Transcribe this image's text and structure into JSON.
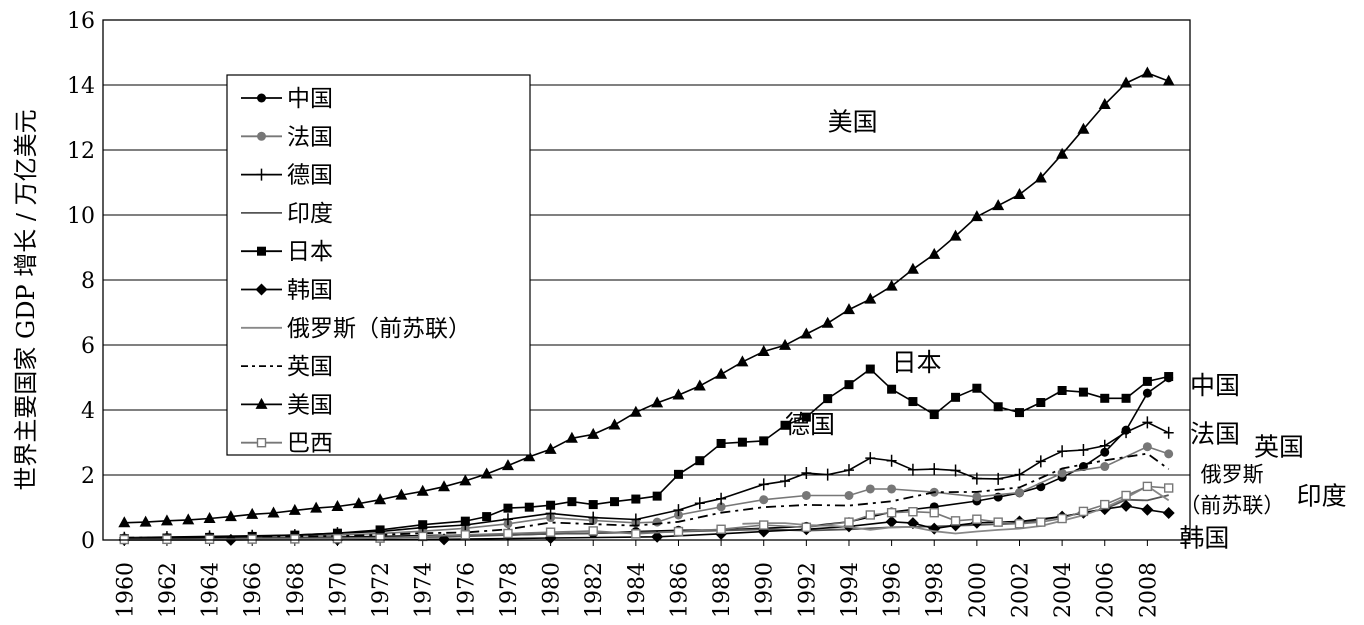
{
  "chart_data": {
    "type": "line",
    "ylabel": "世界主要国家 GDP 增长 / 万亿美元",
    "xlabel": "",
    "ylim": [
      0,
      16
    ],
    "yticks": [
      0,
      2,
      4,
      6,
      8,
      10,
      12,
      14,
      16
    ],
    "xlim": [
      1959,
      2010
    ],
    "xticks": [
      "1960",
      "1962",
      "1964",
      "1966",
      "1968",
      "1970",
      "1972",
      "1974",
      "1976",
      "1978",
      "1980",
      "1982",
      "1984",
      "1986",
      "1988",
      "1990",
      "1992",
      "1994",
      "1996",
      "1998",
      "2000",
      "2002",
      "2004",
      "2006",
      "2008"
    ],
    "grid": "horizontal",
    "legend_position": "top-left",
    "series": [
      {
        "name": "中国",
        "marker": "circle",
        "color": "#000000",
        "x": [
          1960,
          1962,
          1964,
          1966,
          1968,
          1970,
          1972,
          1974,
          1976,
          1978,
          1980,
          1982,
          1984,
          1986,
          1988,
          1990,
          1992,
          1994,
          1996,
          1998,
          2000,
          2001,
          2002,
          2003,
          2004,
          2005,
          2006,
          2007,
          2008,
          2009
        ],
        "values": [
          0.06,
          0.05,
          0.06,
          0.07,
          0.07,
          0.09,
          0.11,
          0.14,
          0.15,
          0.15,
          0.19,
          0.2,
          0.26,
          0.3,
          0.31,
          0.36,
          0.42,
          0.56,
          0.86,
          1.02,
          1.2,
          1.32,
          1.45,
          1.64,
          1.93,
          2.26,
          2.7,
          3.38,
          4.52,
          4.99
        ]
      },
      {
        "name": "法国",
        "marker": "circle",
        "color": "#777777",
        "x": [
          1960,
          1962,
          1964,
          1966,
          1968,
          1970,
          1972,
          1974,
          1976,
          1978,
          1980,
          1982,
          1984,
          1985,
          1986,
          1988,
          1990,
          1992,
          1994,
          1995,
          1996,
          1998,
          2000,
          2002,
          2004,
          2006,
          2008,
          2009
        ],
        "values": [
          0.06,
          0.08,
          0.1,
          0.12,
          0.14,
          0.15,
          0.2,
          0.27,
          0.36,
          0.5,
          0.69,
          0.6,
          0.53,
          0.55,
          0.77,
          1.02,
          1.24,
          1.37,
          1.37,
          1.57,
          1.57,
          1.47,
          1.33,
          1.46,
          2.06,
          2.26,
          2.87,
          2.65
        ]
      },
      {
        "name": "德国",
        "marker": "plus",
        "color": "#000000",
        "x": [
          1960,
          1962,
          1964,
          1966,
          1968,
          1970,
          1972,
          1974,
          1976,
          1978,
          1980,
          1982,
          1984,
          1986,
          1987,
          1988,
          1990,
          1991,
          1992,
          1993,
          1994,
          1995,
          1996,
          1997,
          1998,
          1999,
          2000,
          2001,
          2002,
          2003,
          2004,
          2005,
          2006,
          2007,
          2008,
          2009
        ],
        "values": [
          0.07,
          0.09,
          0.11,
          0.13,
          0.15,
          0.21,
          0.26,
          0.38,
          0.46,
          0.64,
          0.82,
          0.69,
          0.63,
          0.92,
          1.13,
          1.27,
          1.71,
          1.81,
          2.06,
          2.01,
          2.15,
          2.52,
          2.44,
          2.16,
          2.18,
          2.14,
          1.89,
          1.88,
          2.01,
          2.42,
          2.73,
          2.77,
          2.9,
          3.32,
          3.62,
          3.3
        ]
      },
      {
        "name": "印度",
        "marker": "none",
        "color": "#555555",
        "x": [
          1960,
          1965,
          1970,
          1975,
          1980,
          1985,
          1990,
          1992,
          1994,
          1996,
          1998,
          2000,
          2002,
          2004,
          2005,
          2006,
          2007,
          2008,
          2009
        ],
        "values": [
          0.04,
          0.06,
          0.06,
          0.1,
          0.19,
          0.24,
          0.33,
          0.29,
          0.33,
          0.39,
          0.42,
          0.46,
          0.51,
          0.72,
          0.83,
          0.95,
          1.24,
          1.22,
          1.38
        ]
      },
      {
        "name": "日本",
        "marker": "square",
        "color": "#000000",
        "x": [
          1960,
          1962,
          1964,
          1966,
          1968,
          1970,
          1972,
          1974,
          1976,
          1977,
          1978,
          1979,
          1980,
          1981,
          1982,
          1983,
          1984,
          1985,
          1986,
          1987,
          1988,
          1989,
          1990,
          1991,
          1992,
          1993,
          1994,
          1995,
          1996,
          1997,
          1998,
          1999,
          2000,
          2001,
          2002,
          2003,
          2004,
          2005,
          2006,
          2007,
          2008,
          2009
        ],
        "values": [
          0.04,
          0.06,
          0.08,
          0.11,
          0.15,
          0.21,
          0.31,
          0.47,
          0.58,
          0.72,
          0.98,
          1.01,
          1.07,
          1.18,
          1.09,
          1.18,
          1.26,
          1.35,
          2.02,
          2.44,
          2.97,
          3.01,
          3.05,
          3.53,
          3.78,
          4.35,
          4.78,
          5.26,
          4.64,
          4.26,
          3.86,
          4.39,
          4.67,
          4.1,
          3.92,
          4.23,
          4.6,
          4.55,
          4.36,
          4.36,
          4.88,
          5.03
        ]
      },
      {
        "name": "韩国",
        "marker": "diamond",
        "color": "#000000",
        "x": [
          1960,
          1965,
          1970,
          1975,
          1980,
          1985,
          1988,
          1990,
          1992,
          1994,
          1996,
          1997,
          1998,
          1999,
          2000,
          2002,
          2004,
          2005,
          2006,
          2007,
          2008,
          2009
        ],
        "values": [
          0.004,
          0.003,
          0.009,
          0.021,
          0.063,
          0.1,
          0.19,
          0.26,
          0.33,
          0.42,
          0.56,
          0.52,
          0.35,
          0.45,
          0.53,
          0.57,
          0.72,
          0.84,
          0.95,
          1.05,
          0.93,
          0.83
        ]
      },
      {
        "name": "俄罗斯（前苏联）",
        "marker": "none",
        "color": "#888888",
        "x": [
          1989,
          1990,
          1991,
          1992,
          1993,
          1994,
          1995,
          1996,
          1997,
          1998,
          1999,
          2000,
          2001,
          2002,
          2003,
          2004,
          2005,
          2006,
          2007,
          2008,
          2009
        ],
        "values": [
          0.5,
          0.52,
          0.52,
          0.46,
          0.44,
          0.4,
          0.31,
          0.39,
          0.4,
          0.27,
          0.2,
          0.26,
          0.31,
          0.35,
          0.43,
          0.59,
          0.76,
          0.99,
          1.3,
          1.66,
          1.22
        ]
      },
      {
        "name": "英国",
        "marker": "none",
        "dashed": true,
        "color": "#000000",
        "x": [
          1960,
          1962,
          1964,
          1966,
          1968,
          1970,
          1972,
          1974,
          1976,
          1978,
          1980,
          1982,
          1984,
          1986,
          1988,
          1990,
          1992,
          1994,
          1996,
          1998,
          2000,
          2002,
          2004,
          2006,
          2008,
          2009
        ],
        "values": [
          0.07,
          0.08,
          0.1,
          0.11,
          0.11,
          0.12,
          0.16,
          0.21,
          0.23,
          0.33,
          0.54,
          0.49,
          0.44,
          0.56,
          0.84,
          1.01,
          1.08,
          1.06,
          1.19,
          1.47,
          1.48,
          1.62,
          2.2,
          2.45,
          2.66,
          2.18
        ]
      },
      {
        "name": "美国",
        "marker": "triangle",
        "color": "#000000",
        "x": [
          1960,
          1961,
          1962,
          1963,
          1964,
          1965,
          1966,
          1967,
          1968,
          1969,
          1970,
          1971,
          1972,
          1973,
          1974,
          1975,
          1976,
          1977,
          1978,
          1979,
          1980,
          1981,
          1982,
          1983,
          1984,
          1985,
          1986,
          1987,
          1988,
          1989,
          1990,
          1991,
          1992,
          1993,
          1994,
          1995,
          1996,
          1997,
          1998,
          1999,
          2000,
          2001,
          2002,
          2003,
          2004,
          2005,
          2006,
          2007,
          2008,
          2009
        ],
        "values": [
          0.53,
          0.55,
          0.59,
          0.62,
          0.66,
          0.72,
          0.79,
          0.83,
          0.91,
          0.98,
          1.03,
          1.12,
          1.24,
          1.38,
          1.5,
          1.64,
          1.82,
          2.03,
          2.29,
          2.56,
          2.79,
          3.13,
          3.25,
          3.54,
          3.93,
          4.22,
          4.46,
          4.74,
          5.1,
          5.48,
          5.8,
          5.99,
          6.34,
          6.67,
          7.09,
          7.41,
          7.81,
          8.33,
          8.79,
          9.35,
          9.95,
          10.29,
          10.63,
          11.14,
          11.87,
          12.64,
          13.4,
          14.06,
          14.37,
          14.12
        ]
      },
      {
        "name": "巴西",
        "marker": "open-square",
        "color": "#777777",
        "x": [
          1960,
          1962,
          1964,
          1966,
          1968,
          1970,
          1972,
          1974,
          1976,
          1978,
          1980,
          1982,
          1984,
          1986,
          1988,
          1990,
          1992,
          1994,
          1995,
          1996,
          1997,
          1998,
          1999,
          2000,
          2001,
          2002,
          2003,
          2004,
          2005,
          2006,
          2007,
          2008,
          2009
        ],
        "values": [
          0.015,
          0.02,
          0.021,
          0.027,
          0.033,
          0.042,
          0.058,
          0.11,
          0.16,
          0.2,
          0.24,
          0.28,
          0.19,
          0.26,
          0.33,
          0.46,
          0.39,
          0.55,
          0.77,
          0.84,
          0.87,
          0.84,
          0.59,
          0.64,
          0.55,
          0.5,
          0.55,
          0.66,
          0.88,
          1.09,
          1.37,
          1.65,
          1.6
        ]
      }
    ],
    "annotations": [
      {
        "text": "美国",
        "x": 1993,
        "y": 12.6
      },
      {
        "text": "日本",
        "x": 1996,
        "y": 5.2
      },
      {
        "text": "德国",
        "x": 1991,
        "y": 3.3
      },
      {
        "text": "中国",
        "x": 2010,
        "y": 4.5
      },
      {
        "text": "法国",
        "x": 2010,
        "y": 3.0
      },
      {
        "text": "英国",
        "x": 2013,
        "y": 2.6
      },
      {
        "text": "俄罗斯",
        "x": 2010.5,
        "y": 1.8
      },
      {
        "text": "（前苏联）",
        "x": 2009.5,
        "y": 0.85
      },
      {
        "text": "印度",
        "x": 2015,
        "y": 1.1
      },
      {
        "text": "韩国",
        "x": 2009.5,
        "y": -0.2
      }
    ]
  }
}
